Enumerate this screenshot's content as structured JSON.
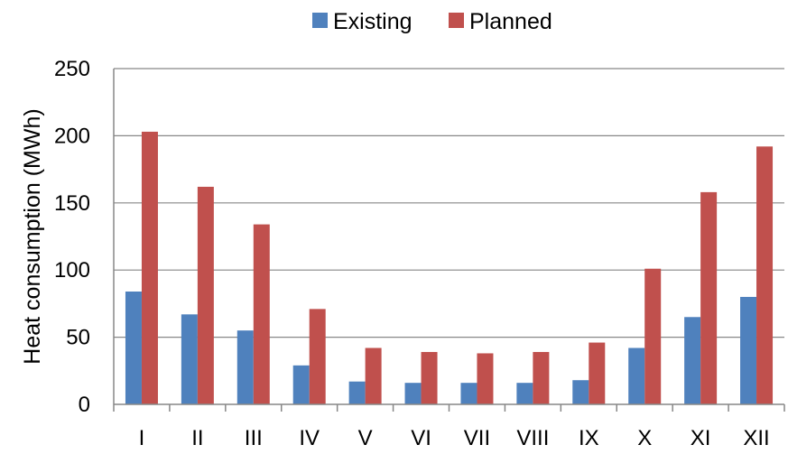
{
  "chart_data": {
    "type": "bar",
    "title": "",
    "xlabel": "",
    "ylabel": "Heat consumption (MWh)",
    "categories": [
      "I",
      "II",
      "III",
      "IV",
      "V",
      "VI",
      "VII",
      "VIII",
      "IX",
      "X",
      "XI",
      "XII"
    ],
    "series": [
      {
        "name": "Existing",
        "color": "#4F81BD",
        "values": [
          84,
          67,
          55,
          29,
          17,
          16,
          16,
          16,
          18,
          42,
          65,
          80
        ]
      },
      {
        "name": "Planned",
        "color": "#C0504D",
        "values": [
          203,
          162,
          134,
          71,
          42,
          39,
          38,
          39,
          46,
          101,
          158,
          192
        ]
      }
    ],
    "ylim": [
      0,
      250
    ],
    "yticks": [
      0,
      50,
      100,
      150,
      200,
      250
    ],
    "grid": true,
    "legend_position": "top"
  }
}
